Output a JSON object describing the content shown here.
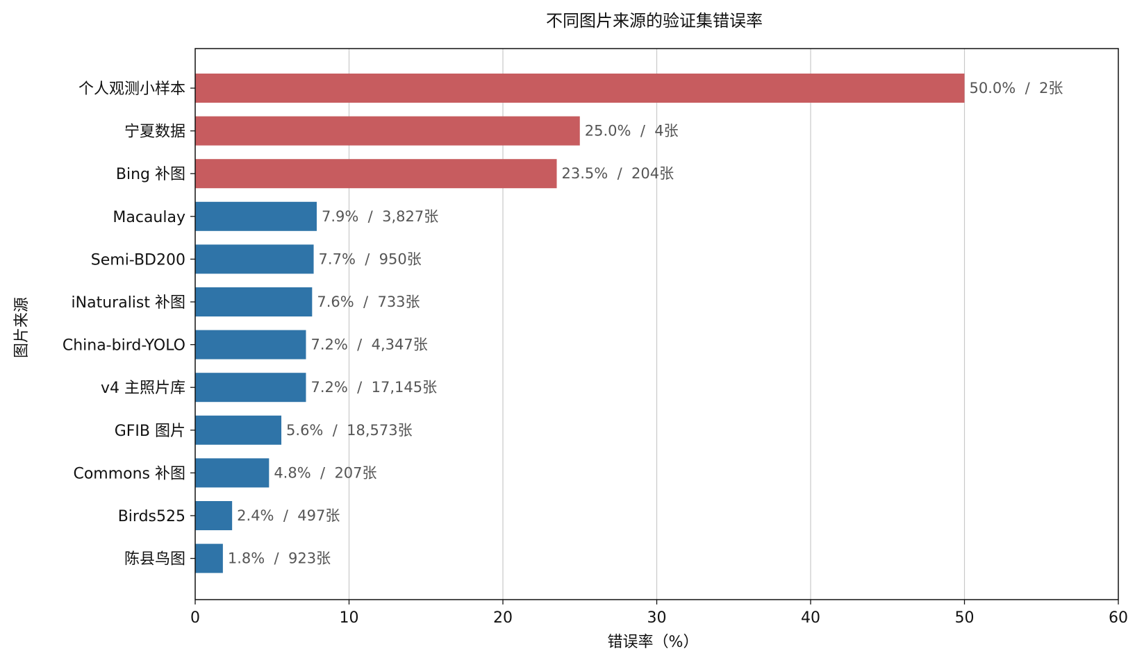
{
  "chart_data": {
    "type": "bar",
    "orientation": "horizontal",
    "title": "不同图片来源的验证集错误率",
    "xlabel": "错误率（%）",
    "ylabel": "图片来源",
    "xlim": [
      0,
      60
    ],
    "xticks": [
      0,
      10,
      20,
      30,
      40,
      50,
      60
    ],
    "grid": "x",
    "legend": null,
    "colors": {
      "highlight": "#c75c5f",
      "normal": "#2f74a8"
    },
    "categories": [
      "个人观测小样本",
      "宁夏数据",
      "Bing 补图",
      "Macaulay",
      "Semi-BD200",
      "iNaturalist 补图",
      "China-bird-YOLO",
      "v4 主照片库",
      "GFIB 图片",
      "Commons 补图",
      "Birds525",
      "陈县鸟图"
    ],
    "values": [
      50.0,
      25.0,
      23.5,
      7.9,
      7.7,
      7.6,
      7.2,
      7.2,
      5.6,
      4.8,
      2.4,
      1.8
    ],
    "counts": [
      "2张",
      "4张",
      "204张",
      "3,827张",
      "950张",
      "733张",
      "4,347张",
      "17,145张",
      "18,573张",
      "207张",
      "497张",
      "923张"
    ],
    "data_labels": [
      "50.0%  /  2张",
      "25.0%  /  4张",
      "23.5%  /  204张",
      "7.9%  /  3,827张",
      "7.7%  /  950张",
      "7.6%  /  733张",
      "7.2%  /  4,347张",
      "7.2%  /  17,145张",
      "5.6%  /  18,573张",
      "4.8%  /  207张",
      "2.4%  /  497张",
      "1.8%  /  923张"
    ],
    "highlighted": [
      true,
      true,
      true,
      false,
      false,
      false,
      false,
      false,
      false,
      false,
      false,
      false
    ]
  }
}
